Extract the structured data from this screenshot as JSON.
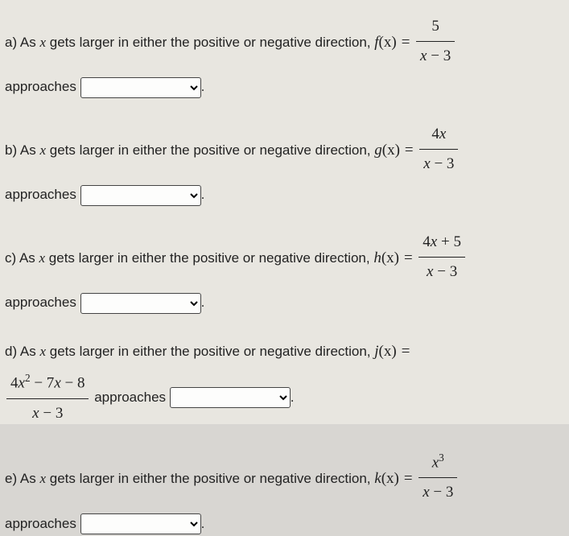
{
  "fontColor": "#222222",
  "background": "#e8e6e0",
  "questions": {
    "a": {
      "label": "a)",
      "prefix": "As ",
      "mid": " gets larger in either the positive or negative direction, ",
      "fn": "f",
      "eq_sign": " = ",
      "frac_num": "5",
      "frac_den_left": "x",
      "frac_den_op": " − ",
      "frac_den_right": "3",
      "approaches": "approaches"
    },
    "b": {
      "label": "b)",
      "prefix": "As ",
      "mid": " gets larger in either the positive or negative direction, ",
      "fn": "g",
      "eq_sign": " = ",
      "frac_num_coeff": "4",
      "frac_num_var": "x",
      "frac_den_left": "x",
      "frac_den_op": " − ",
      "frac_den_right": "3",
      "approaches": "approaches"
    },
    "c": {
      "label": "c)",
      "prefix": "As ",
      "mid": " gets larger in either the positive or negative direction, ",
      "fn": "h",
      "eq_sign": " = ",
      "frac_num": "4x + 5",
      "frac_den_left": "x",
      "frac_den_op": " − ",
      "frac_den_right": "3",
      "approaches": "approaches"
    },
    "d": {
      "label": "d)",
      "prefix": "As ",
      "mid": " gets larger in either the positive or negative direction, ",
      "fn": "j",
      "eq_sign": " =",
      "frac_num": "4x",
      "frac_num_exp": "2",
      "frac_num_rest": " − 7x − 8",
      "frac_den_left": "x",
      "frac_den_op": " − ",
      "frac_den_right": "3",
      "approaches": "approaches"
    },
    "e": {
      "label": "e)",
      "prefix": "As ",
      "mid": " gets larger in either the positive or negative direction, ",
      "fn": "k",
      "eq_sign": " = ",
      "frac_num_var": "x",
      "frac_num_exp": "3",
      "frac_den_left": "x",
      "frac_den_op": " − ",
      "frac_den_right": "3",
      "approaches": "approaches"
    }
  },
  "xvar": "x",
  "fn_arg": "(x)"
}
